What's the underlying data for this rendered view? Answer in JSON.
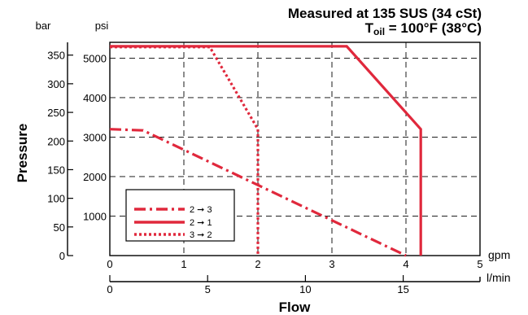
{
  "chart_data": {
    "type": "line",
    "title_line1": "Measured at 135 SUS  (34 cSt)",
    "title_line2_main": "T",
    "title_line2_sub": "oil",
    "title_line2_rest": " = 100°F  (38°C)",
    "bar_unit": "bar",
    "psi_unit": "psi",
    "ylabel": "Pressure",
    "xlabel": "Flow",
    "gpm_unit": "gpm",
    "lmin_unit": "l/min",
    "gpm_ticks": [
      "0",
      "1",
      "2",
      "3",
      "4",
      "5"
    ],
    "lmin_ticks": [
      "0",
      "5",
      "10",
      "15"
    ],
    "psi_ticks": [
      "1000",
      "2000",
      "3000",
      "4000",
      "5000"
    ],
    "bar_ticks": [
      "0",
      "50",
      "100",
      "150",
      "200",
      "250",
      "300",
      "350"
    ],
    "xlim_gpm": [
      0,
      5
    ],
    "ylim_psi": [
      0,
      5400
    ],
    "grid": true,
    "legend_position": "lower-left",
    "series": [
      {
        "name": "2 ➞ 3",
        "color": "#e0283c",
        "style": "dash-dot",
        "x": [
          0,
          0.45,
          4.0
        ],
        "y": [
          3200,
          3170,
          0
        ]
      },
      {
        "name": "2 ➞ 1",
        "color": "#e0283c",
        "style": "solid",
        "x": [
          0,
          3.2,
          4.2,
          4.2
        ],
        "y": [
          5300,
          5300,
          3200,
          0
        ]
      },
      {
        "name": "3 ➞ 2",
        "color": "#e0283c",
        "style": "dotted",
        "x": [
          0,
          1.35,
          2.0,
          2.0
        ],
        "y": [
          5280,
          5280,
          3200,
          0
        ]
      }
    ]
  }
}
